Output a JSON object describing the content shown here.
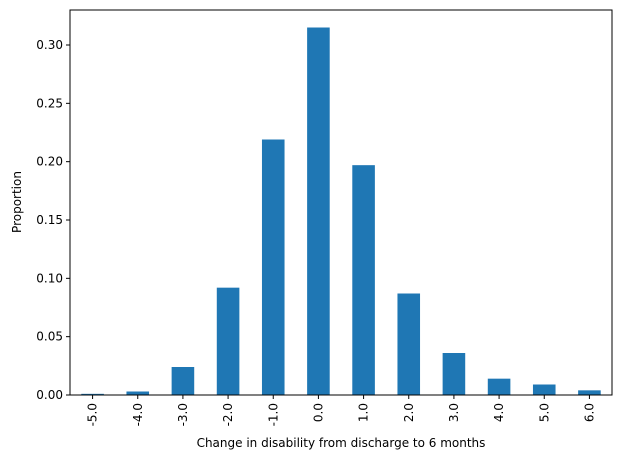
{
  "chart_data": {
    "type": "bar",
    "title": "",
    "xlabel": "Change in disability from discharge to 6 months",
    "ylabel": "Proportion",
    "categories": [
      "-5.0",
      "-4.0",
      "-3.0",
      "-2.0",
      "-1.0",
      "0.0",
      "1.0",
      "2.0",
      "3.0",
      "4.0",
      "5.0",
      "6.0"
    ],
    "values": [
      0.001,
      0.003,
      0.024,
      0.092,
      0.219,
      0.315,
      0.197,
      0.087,
      0.036,
      0.014,
      0.009,
      0.004
    ],
    "ylim": [
      0,
      0.33
    ],
    "yticks": [
      0.0,
      0.05,
      0.1,
      0.15,
      0.2,
      0.25,
      0.3
    ],
    "ytick_labels": [
      "0.00",
      "0.05",
      "0.10",
      "0.15",
      "0.20",
      "0.25",
      "0.30"
    ],
    "grid": false,
    "legend": "none",
    "bar_color": "#1f77b4"
  }
}
